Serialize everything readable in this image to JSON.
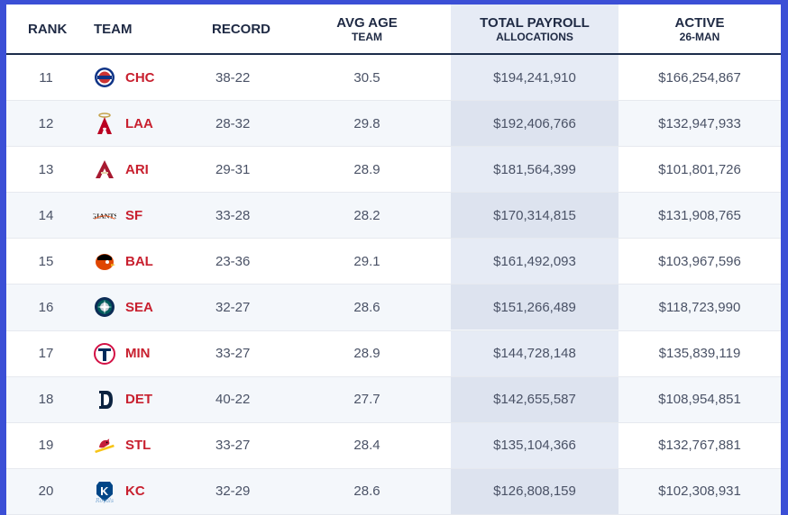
{
  "header": {
    "rank": "RANK",
    "team": "TEAM",
    "record": "RECORD",
    "avg_age": "AVG AGE",
    "avg_age_sub": "TEAM",
    "payroll": "TOTAL PAYROLL",
    "payroll_sub": "ALLOCATIONS",
    "active": "ACTIVE",
    "active_sub": "26-MAN"
  },
  "rows": [
    {
      "rank": "11",
      "team": "CHC",
      "logo": "cubs-logo-icon",
      "record": "38-22",
      "avg_age": "30.5",
      "payroll": "$194,241,910",
      "active": "$166,254,867"
    },
    {
      "rank": "12",
      "team": "LAA",
      "logo": "angels-logo-icon",
      "record": "28-32",
      "avg_age": "29.8",
      "payroll": "$192,406,766",
      "active": "$132,947,933"
    },
    {
      "rank": "13",
      "team": "ARI",
      "logo": "diamondbacks-logo-icon",
      "record": "29-31",
      "avg_age": "28.9",
      "payroll": "$181,564,399",
      "active": "$101,801,726"
    },
    {
      "rank": "14",
      "team": "SF",
      "logo": "giants-logo-icon",
      "record": "33-28",
      "avg_age": "28.2",
      "payroll": "$170,314,815",
      "active": "$131,908,765"
    },
    {
      "rank": "15",
      "team": "BAL",
      "logo": "orioles-logo-icon",
      "record": "23-36",
      "avg_age": "29.1",
      "payroll": "$161,492,093",
      "active": "$103,967,596"
    },
    {
      "rank": "16",
      "team": "SEA",
      "logo": "mariners-logo-icon",
      "record": "32-27",
      "avg_age": "28.6",
      "payroll": "$151,266,489",
      "active": "$118,723,990"
    },
    {
      "rank": "17",
      "team": "MIN",
      "logo": "twins-logo-icon",
      "record": "33-27",
      "avg_age": "28.9",
      "payroll": "$144,728,148",
      "active": "$135,839,119"
    },
    {
      "rank": "18",
      "team": "DET",
      "logo": "tigers-logo-icon",
      "record": "40-22",
      "avg_age": "27.7",
      "payroll": "$142,655,587",
      "active": "$108,954,851"
    },
    {
      "rank": "19",
      "team": "STL",
      "logo": "cardinals-logo-icon",
      "record": "33-27",
      "avg_age": "28.4",
      "payroll": "$135,104,366",
      "active": "$132,767,881"
    },
    {
      "rank": "20",
      "team": "KC",
      "logo": "royals-logo-icon",
      "record": "32-29",
      "avg_age": "28.6",
      "payroll": "$126,808,159",
      "active": "$102,308,931"
    }
  ],
  "colors": {
    "border": "#3b4fd6",
    "team_text": "#c8202f",
    "header_text": "#1f2a44",
    "highlight_col": "#e6ebf5"
  }
}
